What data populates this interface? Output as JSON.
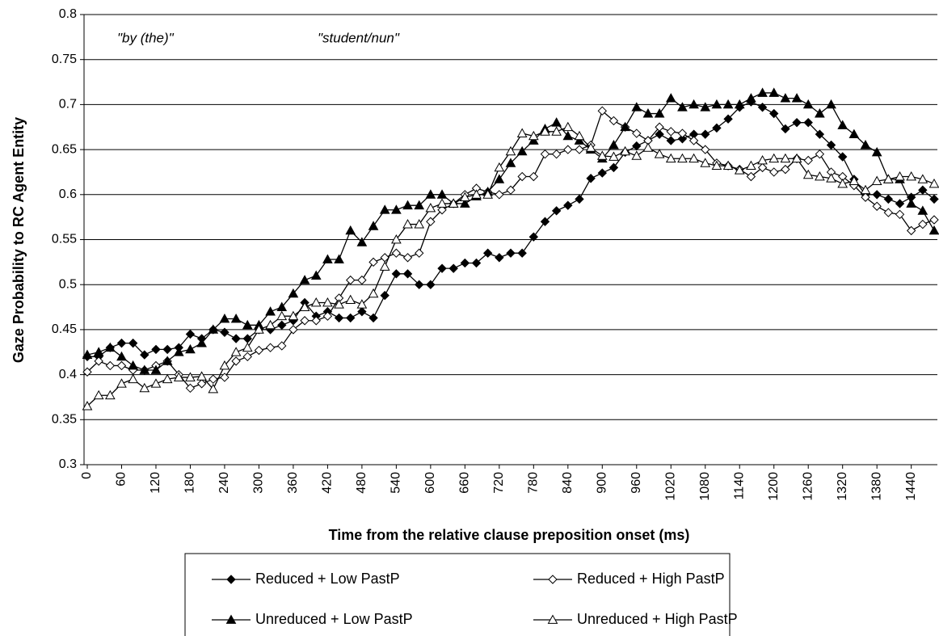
{
  "chart_data": {
    "type": "line",
    "x_label": "Time from the relative clause preposition onset (ms)",
    "y_label": "Gaze Probability to RC Agent Entity",
    "annotations": [
      "\"by (the)\"",
      "\"student/nun\""
    ],
    "x": [
      0,
      20,
      40,
      60,
      80,
      100,
      120,
      140,
      160,
      180,
      200,
      220,
      240,
      260,
      280,
      300,
      320,
      340,
      360,
      380,
      400,
      420,
      440,
      460,
      480,
      500,
      520,
      540,
      560,
      580,
      600,
      620,
      640,
      660,
      680,
      700,
      720,
      740,
      760,
      780,
      800,
      820,
      840,
      860,
      880,
      900,
      920,
      940,
      960,
      980,
      1000,
      1020,
      1040,
      1060,
      1080,
      1100,
      1120,
      1140,
      1160,
      1180,
      1200,
      1220,
      1240,
      1260,
      1280,
      1300,
      1320,
      1340,
      1360,
      1380,
      1400,
      1420,
      1440,
      1460,
      1480
    ],
    "xlim": [
      0,
      1480
    ],
    "xticks": [
      0,
      60,
      120,
      180,
      240,
      300,
      360,
      420,
      480,
      540,
      600,
      660,
      720,
      780,
      840,
      900,
      960,
      1020,
      1080,
      1140,
      1200,
      1260,
      1320,
      1380,
      1440
    ],
    "ylim": [
      0.3,
      0.8
    ],
    "yticks": [
      0.3,
      0.35,
      0.4,
      0.45,
      0.5,
      0.55,
      0.6,
      0.65,
      0.7,
      0.75,
      0.8
    ],
    "grid": true,
    "series": [
      {
        "name": "Reduced + Low PastP",
        "color": "#000000",
        "marker": "diamond",
        "filled": true,
        "values": [
          0.42,
          0.42,
          0.43,
          0.435,
          0.435,
          0.422,
          0.428,
          0.428,
          0.43,
          0.445,
          0.44,
          0.45,
          0.447,
          0.44,
          0.44,
          0.45,
          0.45,
          0.455,
          0.46,
          0.48,
          0.465,
          0.47,
          0.463,
          0.463,
          0.47,
          0.463,
          0.488,
          0.512,
          0.512,
          0.5,
          0.5,
          0.518,
          0.518,
          0.524,
          0.524,
          0.535,
          0.53,
          0.535,
          0.535,
          0.553,
          0.57,
          0.582,
          0.588,
          0.595,
          0.618,
          0.624,
          0.63,
          0.647,
          0.654,
          0.66,
          0.667,
          0.66,
          0.662,
          0.667,
          0.667,
          0.674,
          0.684,
          0.697,
          0.703,
          0.697,
          0.69,
          0.673,
          0.68,
          0.68,
          0.667,
          0.655,
          0.642,
          0.617,
          0.6,
          0.6,
          0.595,
          0.59,
          0.597,
          0.605,
          0.595
        ]
      },
      {
        "name": "Reduced + High PastP",
        "color": "#000000",
        "marker": "diamond",
        "filled": false,
        "values": [
          0.403,
          0.415,
          0.41,
          0.41,
          0.405,
          0.405,
          0.41,
          0.415,
          0.4,
          0.385,
          0.39,
          0.395,
          0.397,
          0.415,
          0.42,
          0.427,
          0.43,
          0.432,
          0.45,
          0.46,
          0.46,
          0.465,
          0.485,
          0.505,
          0.505,
          0.525,
          0.53,
          0.535,
          0.53,
          0.535,
          0.57,
          0.583,
          0.59,
          0.6,
          0.607,
          0.603,
          0.6,
          0.605,
          0.62,
          0.62,
          0.645,
          0.645,
          0.65,
          0.65,
          0.655,
          0.693,
          0.682,
          0.675,
          0.668,
          0.66,
          0.675,
          0.67,
          0.668,
          0.66,
          0.65,
          0.635,
          0.632,
          0.628,
          0.62,
          0.63,
          0.625,
          0.628,
          0.64,
          0.638,
          0.645,
          0.625,
          0.62,
          0.61,
          0.597,
          0.587,
          0.58,
          0.578,
          0.56,
          0.567,
          0.572
        ]
      },
      {
        "name": "Unreduced + Low PastP",
        "color": "#000000",
        "marker": "triangle",
        "filled": true,
        "values": [
          0.422,
          0.425,
          0.43,
          0.42,
          0.41,
          0.405,
          0.405,
          0.415,
          0.425,
          0.428,
          0.435,
          0.45,
          0.462,
          0.462,
          0.455,
          0.455,
          0.47,
          0.475,
          0.49,
          0.505,
          0.51,
          0.528,
          0.528,
          0.56,
          0.547,
          0.565,
          0.583,
          0.583,
          0.588,
          0.588,
          0.6,
          0.6,
          0.59,
          0.59,
          0.598,
          0.603,
          0.617,
          0.635,
          0.648,
          0.66,
          0.673,
          0.68,
          0.665,
          0.66,
          0.65,
          0.64,
          0.655,
          0.675,
          0.697,
          0.69,
          0.69,
          0.707,
          0.697,
          0.7,
          0.697,
          0.7,
          0.7,
          0.7,
          0.707,
          0.713,
          0.713,
          0.707,
          0.707,
          0.7,
          0.69,
          0.7,
          0.677,
          0.667,
          0.655,
          0.647,
          0.617,
          0.617,
          0.59,
          0.582,
          0.56
        ]
      },
      {
        "name": "Unreduced + High PastP",
        "color": "#000000",
        "marker": "triangle",
        "filled": false,
        "values": [
          0.365,
          0.377,
          0.377,
          0.39,
          0.395,
          0.385,
          0.39,
          0.395,
          0.397,
          0.397,
          0.398,
          0.384,
          0.41,
          0.425,
          0.43,
          0.45,
          0.455,
          0.465,
          0.465,
          0.475,
          0.48,
          0.48,
          0.478,
          0.483,
          0.478,
          0.49,
          0.52,
          0.55,
          0.567,
          0.567,
          0.585,
          0.59,
          0.59,
          0.597,
          0.6,
          0.6,
          0.63,
          0.648,
          0.668,
          0.665,
          0.67,
          0.67,
          0.675,
          0.665,
          0.652,
          0.643,
          0.642,
          0.648,
          0.643,
          0.652,
          0.645,
          0.64,
          0.64,
          0.64,
          0.635,
          0.632,
          0.632,
          0.627,
          0.632,
          0.638,
          0.64,
          0.64,
          0.64,
          0.622,
          0.62,
          0.618,
          0.612,
          0.615,
          0.605,
          0.615,
          0.617,
          0.62,
          0.62,
          0.617,
          0.612
        ]
      }
    ]
  }
}
